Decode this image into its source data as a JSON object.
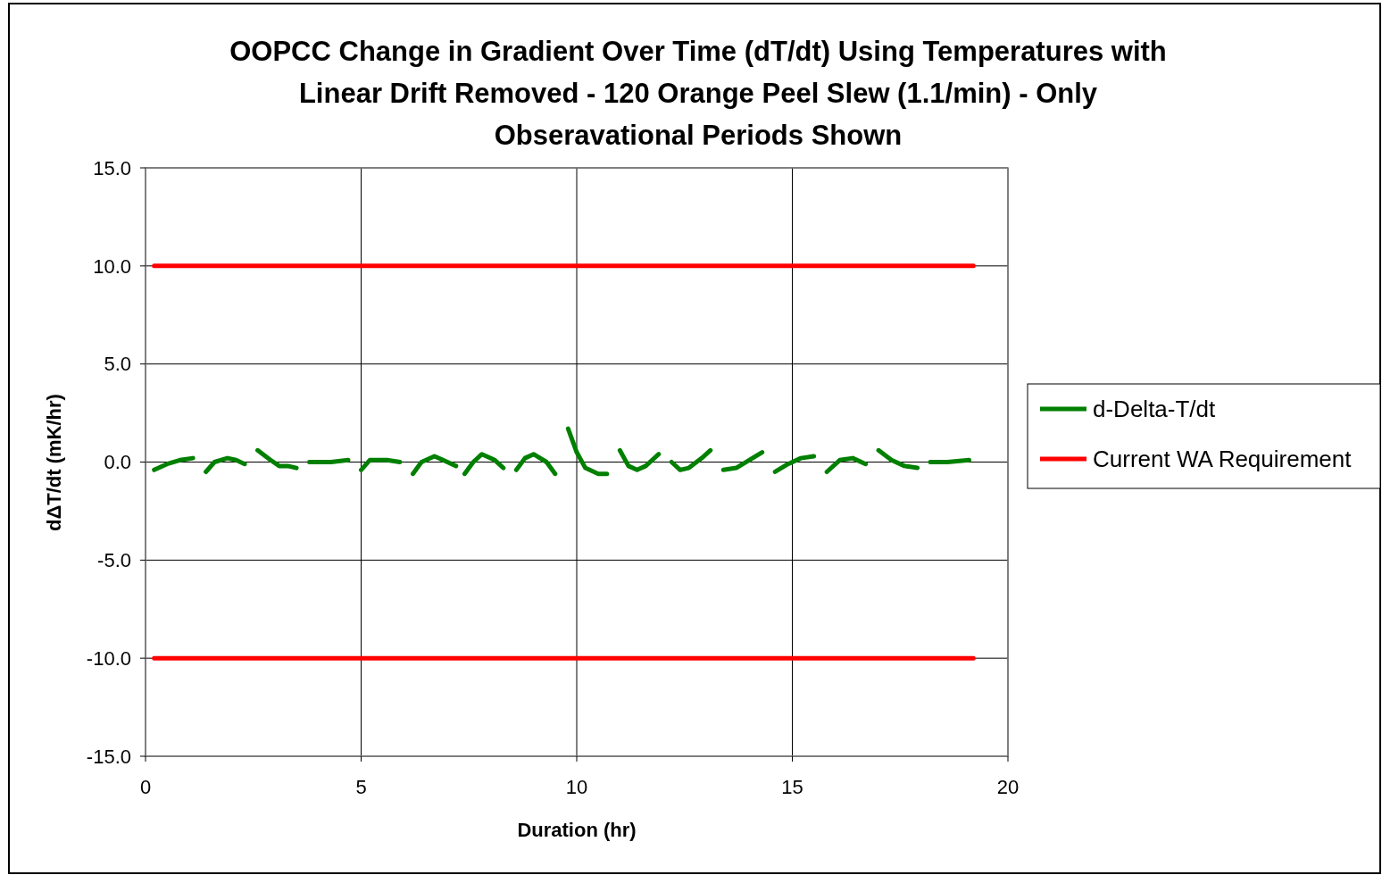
{
  "chart_data": {
    "type": "line",
    "title": "OOPCC Change in Gradient Over Time (dT/dt) Using Temperatures with Linear Drift Removed - 120 Orange Peel Slew (1.1/min) - Only Obseravational Periods Shown",
    "xlabel": "Duration (hr)",
    "ylabel": "dΔT/dt (mK/hr)",
    "xlim": [
      0,
      20
    ],
    "xticks": [
      0,
      5,
      10,
      15,
      20
    ],
    "ylim": [
      -15,
      15
    ],
    "yticks": [
      {
        "value": -15,
        "label": "-15.0"
      },
      {
        "value": -10,
        "label": "-10.0"
      },
      {
        "value": -5,
        "label": "-5.0"
      },
      {
        "value": 0,
        "label": "0.0"
      },
      {
        "value": 5,
        "label": "5.0"
      },
      {
        "value": 10,
        "label": "10.0"
      },
      {
        "value": 15,
        "label": "15.0"
      }
    ],
    "grid": true,
    "legend": "right",
    "marker": "none",
    "line_style": "solid",
    "series": [
      {
        "name": "d-Delta-T/dt",
        "color": "#008000",
        "x": [
          0.2,
          0.5,
          0.8,
          1.1,
          null,
          1.4,
          1.6,
          1.9,
          2.1,
          2.3,
          null,
          2.6,
          2.9,
          3.1,
          3.3,
          3.5,
          null,
          3.8,
          4.3,
          4.7,
          null,
          5.0,
          5.2,
          5.6,
          5.9,
          null,
          6.2,
          6.4,
          6.7,
          6.9,
          7.2,
          null,
          7.4,
          7.6,
          7.8,
          8.1,
          8.3,
          null,
          8.6,
          8.8,
          9.0,
          9.3,
          9.5,
          null,
          9.8,
          10.0,
          10.2,
          10.5,
          10.7,
          null,
          11.0,
          11.2,
          11.4,
          11.6,
          11.9,
          null,
          12.2,
          12.4,
          12.6,
          12.9,
          13.1,
          null,
          13.4,
          13.7,
          14.0,
          14.3,
          null,
          14.6,
          14.9,
          15.2,
          15.5,
          null,
          15.8,
          16.1,
          16.4,
          16.7,
          null,
          17.0,
          17.3,
          17.6,
          17.9,
          null,
          18.2,
          18.6,
          19.1
        ],
        "values": [
          -0.4,
          -0.1,
          0.1,
          0.2,
          null,
          -0.5,
          0,
          0.2,
          0.1,
          -0.1,
          null,
          0.6,
          0.1,
          -0.2,
          -0.2,
          -0.3,
          null,
          0,
          0,
          0.1,
          null,
          -0.4,
          0.1,
          0.1,
          0,
          null,
          -0.6,
          0,
          0.3,
          0.1,
          -0.2,
          null,
          -0.6,
          0,
          0.4,
          0.1,
          -0.3,
          null,
          -0.4,
          0.2,
          0.4,
          0,
          -0.6,
          null,
          1.7,
          0.5,
          -0.3,
          -0.6,
          -0.6,
          null,
          0.6,
          -0.2,
          -0.4,
          -0.2,
          0.4,
          null,
          0,
          -0.4,
          -0.3,
          0.2,
          0.6,
          null,
          -0.4,
          -0.3,
          0.1,
          0.5,
          null,
          -0.5,
          -0.1,
          0.2,
          0.3,
          null,
          -0.5,
          0.1,
          0.2,
          -0.1,
          null,
          0.6,
          0.1,
          -0.2,
          -0.3,
          null,
          0,
          0,
          0.1
        ]
      },
      {
        "name": "Current WA Requirement",
        "color": "#ff0000",
        "x": [
          0.2,
          19.2
        ],
        "values": [
          10,
          10
        ]
      },
      {
        "color": "#ff0000",
        "x": [
          0.2,
          19.2
        ],
        "values": [
          -10,
          -10
        ]
      }
    ]
  }
}
